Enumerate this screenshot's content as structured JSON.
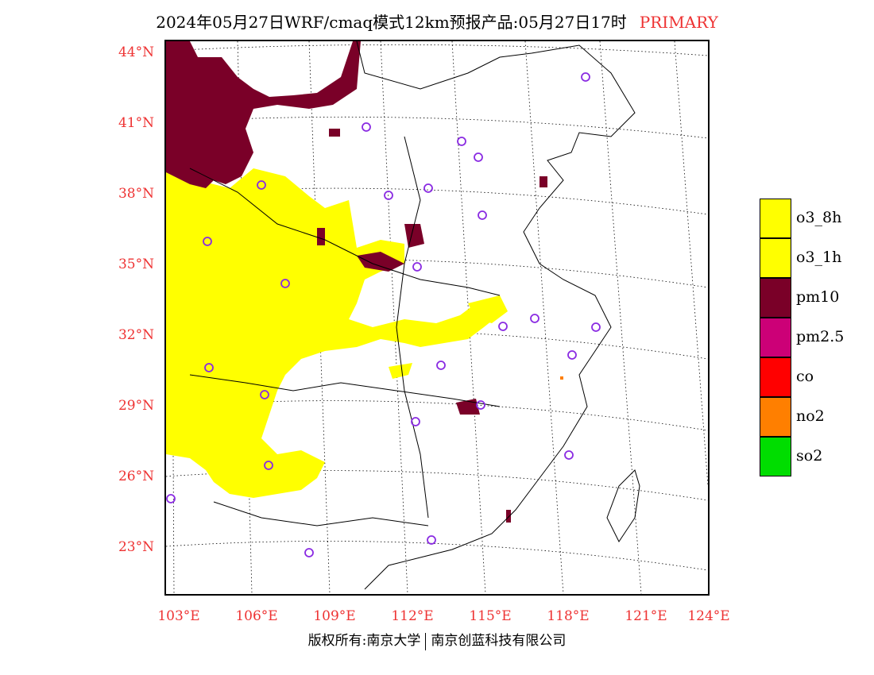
{
  "header": {
    "title": "2024年05月27日WRF/cmaq模式12km预报产品:05月27日17时",
    "tag": "PRIMARY"
  },
  "map": {
    "lat_labels": [
      "44°N",
      "41°N",
      "38°N",
      "35°N",
      "32°N",
      "29°N",
      "26°N",
      "23°N"
    ],
    "lon_labels": [
      "103°E",
      "106°E",
      "109°E",
      "112°E",
      "115°E",
      "118°E",
      "121°E",
      "124°E"
    ]
  },
  "legend": {
    "items": [
      {
        "label": "o3_8h",
        "color": "#ffff00"
      },
      {
        "label": "o3_1h",
        "color": "#ffff00"
      },
      {
        "label": "pm10",
        "color": "#7a0028"
      },
      {
        "label": "pm2.5",
        "color": "#cc0077"
      },
      {
        "label": "co",
        "color": "#ff0000"
      },
      {
        "label": "no2",
        "color": "#ff7f00"
      },
      {
        "label": "so2",
        "color": "#00dd00"
      }
    ]
  },
  "footer": {
    "left": "版权所有:南京大学",
    "right": "南京创蓝科技有限公司"
  },
  "colors": {
    "label": "#e33333",
    "ozone": "#ffff00",
    "pm10": "#7a0028",
    "pm25": "#cc0077",
    "station": "#8a2be2"
  }
}
